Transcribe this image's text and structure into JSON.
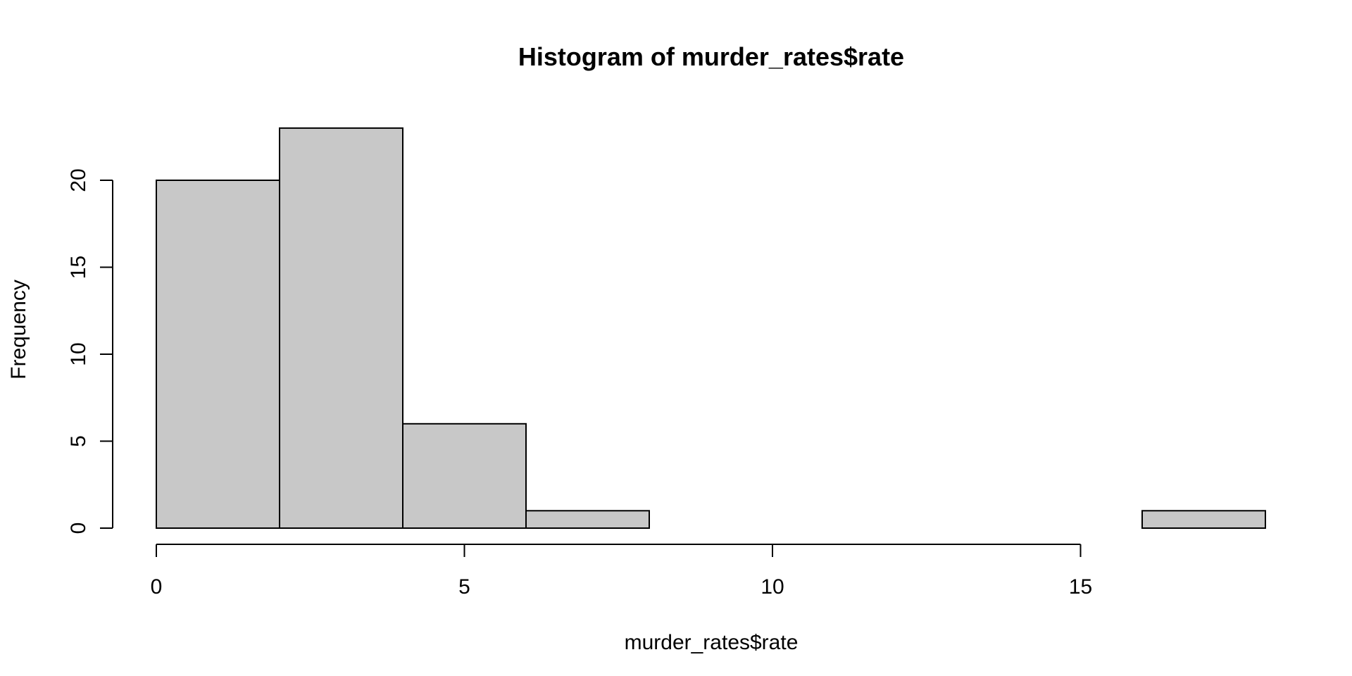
{
  "chart_data": {
    "type": "bar",
    "title": "Histogram of murder_rates$rate",
    "xlabel": "murder_rates$rate",
    "ylabel": "Frequency",
    "bins": [
      {
        "start": 0,
        "end": 2,
        "count": 20
      },
      {
        "start": 2,
        "end": 4,
        "count": 23
      },
      {
        "start": 4,
        "end": 6,
        "count": 6
      },
      {
        "start": 6,
        "end": 8,
        "count": 1
      },
      {
        "start": 8,
        "end": 10,
        "count": 0
      },
      {
        "start": 10,
        "end": 12,
        "count": 0
      },
      {
        "start": 12,
        "end": 14,
        "count": 0
      },
      {
        "start": 14,
        "end": 16,
        "count": 0
      },
      {
        "start": 16,
        "end": 18,
        "count": 1
      }
    ],
    "xticks": [
      0,
      5,
      10,
      15
    ],
    "yticks": [
      0,
      5,
      10,
      15,
      20
    ],
    "xlim": [
      0,
      18
    ],
    "ylim": [
      0,
      23
    ],
    "grid": false,
    "bar_color": "#c8c8c8"
  }
}
